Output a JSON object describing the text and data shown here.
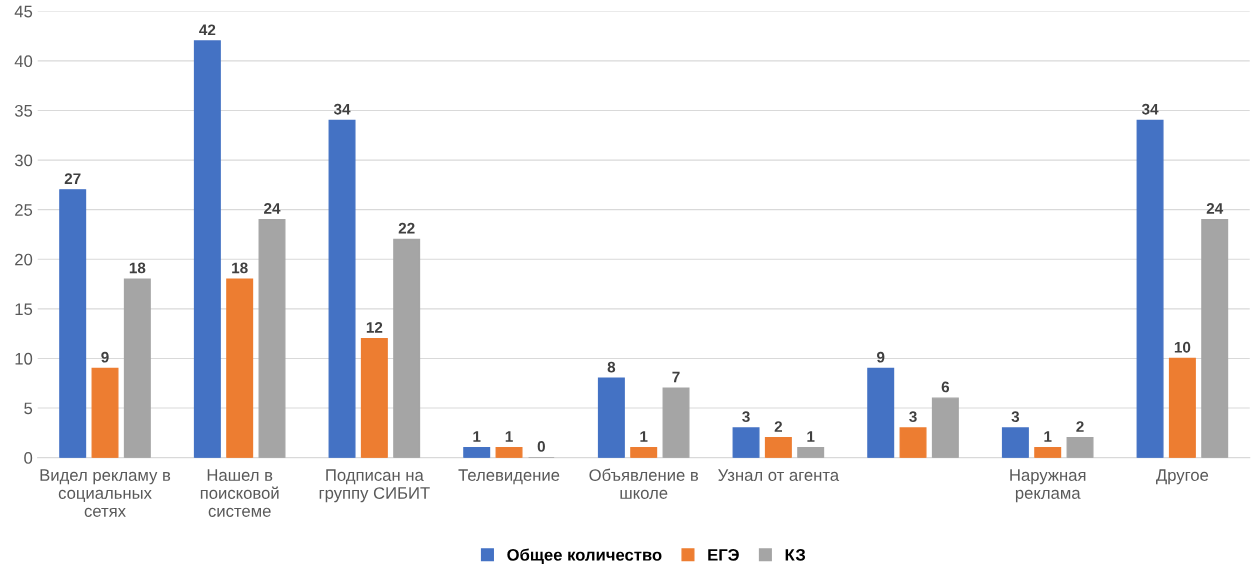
{
  "chart_data": {
    "type": "bar",
    "categories": [
      "Видел рекламу в социальных сетях",
      "Нашел в поисковой системе",
      "Подписан на группу СИБИТ",
      "Телевидение",
      "Объявление в школе",
      "Узнал от агента",
      null,
      "Наружная реклама",
      "Другое"
    ],
    "series": [
      {
        "name": "Общее количество",
        "color": "#4472c4",
        "values": [
          27,
          42,
          34,
          1,
          8,
          3,
          9,
          3,
          34
        ]
      },
      {
        "name": "ЕГЭ",
        "color": "#ed7d31",
        "values": [
          9,
          18,
          12,
          1,
          1,
          2,
          3,
          1,
          10
        ]
      },
      {
        "name": "КЗ",
        "color": "#a5a5a5",
        "values": [
          18,
          24,
          22,
          0,
          7,
          1,
          6,
          2,
          24
        ]
      }
    ],
    "ylim": [
      0,
      45
    ],
    "yticks": [
      0,
      5,
      10,
      15,
      20,
      25,
      30,
      35,
      40,
      45
    ],
    "grid": "y",
    "legend": "bottom",
    "data_labels": true
  }
}
